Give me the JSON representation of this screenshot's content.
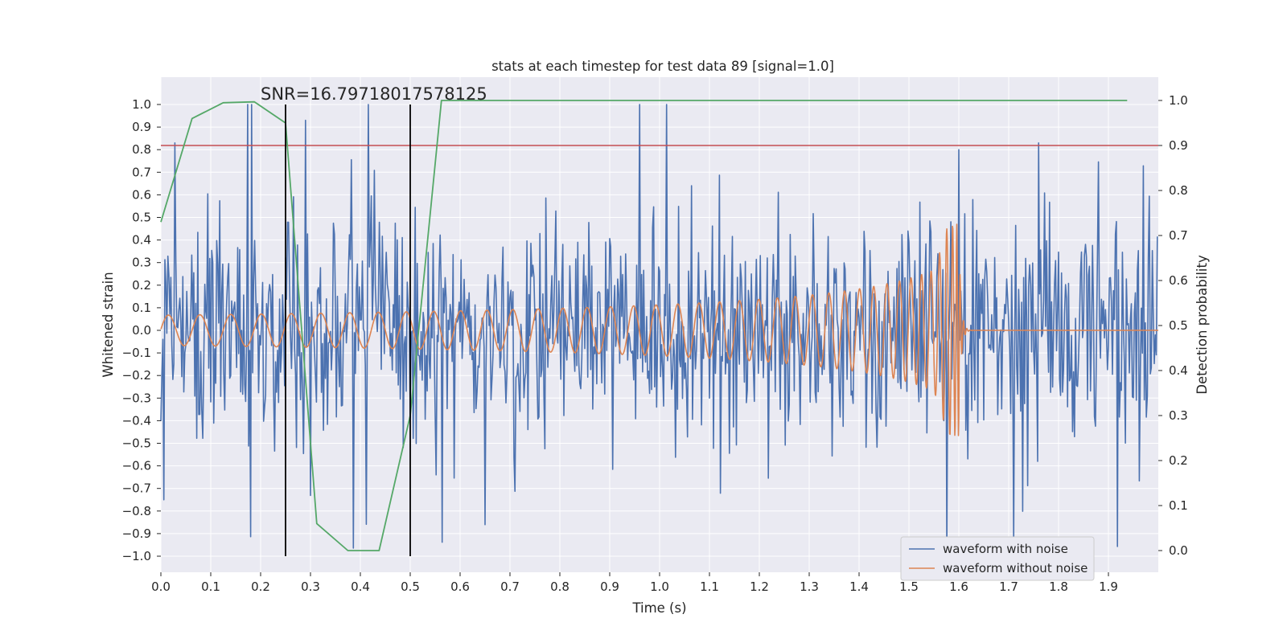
{
  "chart_data": {
    "type": "line",
    "title": "stats at each timestep for test data 89 [signal=1.0]",
    "xlabel": "Time (s)",
    "ylabel": "Whitened strain",
    "ylabel_right": "Detection probability",
    "xlim": [
      0.0,
      2.0
    ],
    "ylim": [
      -1.1,
      1.1
    ],
    "ylim_right": [
      -0.05,
      1.05
    ],
    "x_ticks": [
      0.0,
      0.1,
      0.2,
      0.3,
      0.4,
      0.5,
      0.6,
      0.7,
      0.8,
      0.9,
      1.0,
      1.1,
      1.2,
      1.3,
      1.4,
      1.5,
      1.6,
      1.7,
      1.8,
      1.9
    ],
    "x_tick_labels": [
      "0.0",
      "0.1",
      "0.2",
      "0.3",
      "0.4",
      "0.5",
      "0.6",
      "0.7",
      "0.8",
      "0.9",
      "1.0",
      "1.1",
      "1.2",
      "1.3",
      "1.4",
      "1.5",
      "1.6",
      "1.7",
      "1.8",
      "1.9"
    ],
    "y_ticks": [
      1.0,
      0.9,
      0.8,
      0.7,
      0.6,
      0.5,
      0.4,
      0.3,
      0.2,
      0.1,
      0.0,
      -0.1,
      -0.2,
      -0.3,
      -0.4,
      -0.5,
      -0.6,
      -0.7,
      -0.8,
      -0.9,
      -1.0
    ],
    "y_tick_labels": [
      "1.0",
      "0.9",
      "0.8",
      "0.7",
      "0.6",
      "0.5",
      "0.4",
      "0.3",
      "0.2",
      "0.1",
      "0.0",
      "−0.1",
      "−0.2",
      "−0.3",
      "−0.4",
      "−0.5",
      "−0.6",
      "−0.7",
      "−0.8",
      "−0.9",
      "−1.0"
    ],
    "y_ticks_right": [
      1.0,
      0.9,
      0.8,
      0.7,
      0.6,
      0.5,
      0.4,
      0.3,
      0.2,
      0.1,
      0.0
    ],
    "y_tick_labels_right": [
      "1.0",
      "0.9",
      "0.8",
      "0.7",
      "0.6",
      "0.5",
      "0.4",
      "0.3",
      "0.2",
      "0.1",
      "0.0"
    ],
    "annotation": "SNR=16.79718017578125",
    "annotation_at": {
      "x": 0.2,
      "y": 1.0
    },
    "threshold": {
      "value_right": 0.9,
      "color": "#c44e52"
    },
    "vlines": [
      {
        "x": 0.25,
        "y_range": [
          -1.0,
          1.0
        ],
        "color": "#000000"
      },
      {
        "x": 0.5,
        "y_range": [
          -1.0,
          1.0
        ],
        "color": "#000000"
      }
    ],
    "series": [
      {
        "name": "waveform with noise",
        "axis": "left",
        "color": "#4c72b0",
        "generated": {
          "kind": "noise",
          "seed": 89,
          "n": 1000,
          "sigma": 0.24,
          "clip": [
            -1.0,
            1.0
          ]
        },
        "notable_points": [
          {
            "x": 0.005,
            "y": -0.75
          },
          {
            "x": 0.027,
            "y": 0.83
          },
          {
            "x": 0.29,
            "y": 0.93
          },
          {
            "x": 0.65,
            "y": -0.86
          },
          {
            "x": 0.96,
            "y": 1.0
          },
          {
            "x": 1.575,
            "y": -0.98
          },
          {
            "x": 1.6,
            "y": 0.8
          },
          {
            "x": 1.71,
            "y": -0.93
          },
          {
            "x": 1.76,
            "y": 0.83
          }
        ],
        "in_legend": true
      },
      {
        "name": "waveform without noise",
        "axis": "left",
        "color": "#dd8452",
        "generated": {
          "kind": "chirp",
          "f0": 30,
          "tc": 1.6,
          "amp0": 0.07,
          "amp_peak": 0.47,
          "ringdown_tau": 0.004
        },
        "in_legend": true
      },
      {
        "name": "detection probability",
        "axis": "right",
        "color": "#55a868",
        "x": [
          0.0,
          0.0625,
          0.125,
          0.1875,
          0.25,
          0.3125,
          0.375,
          0.4375,
          0.5,
          0.5625,
          0.625,
          0.6875,
          0.75,
          0.8125,
          0.875,
          0.9375,
          1.0,
          1.0625,
          1.125,
          1.1875,
          1.25,
          1.3125,
          1.375,
          1.4375,
          1.5,
          1.5625,
          1.625,
          1.6875,
          1.75,
          1.8125,
          1.875,
          1.9375
        ],
        "values": [
          0.73,
          0.96,
          0.995,
          0.997,
          0.95,
          0.06,
          0.0,
          0.0,
          0.3,
          1.0,
          1.0,
          1.0,
          1.0,
          1.0,
          1.0,
          1.0,
          1.0,
          1.0,
          1.0,
          1.0,
          1.0,
          1.0,
          1.0,
          1.0,
          1.0,
          1.0,
          1.0,
          1.0,
          1.0,
          1.0,
          1.0,
          1.0
        ],
        "in_legend": false
      }
    ],
    "legend": {
      "position": "lower-right",
      "entries": [
        "waveform with noise",
        "waveform without noise"
      ]
    },
    "grid": true,
    "style": {
      "background": "#eaeaf2",
      "grid_color": "#ffffff"
    }
  }
}
